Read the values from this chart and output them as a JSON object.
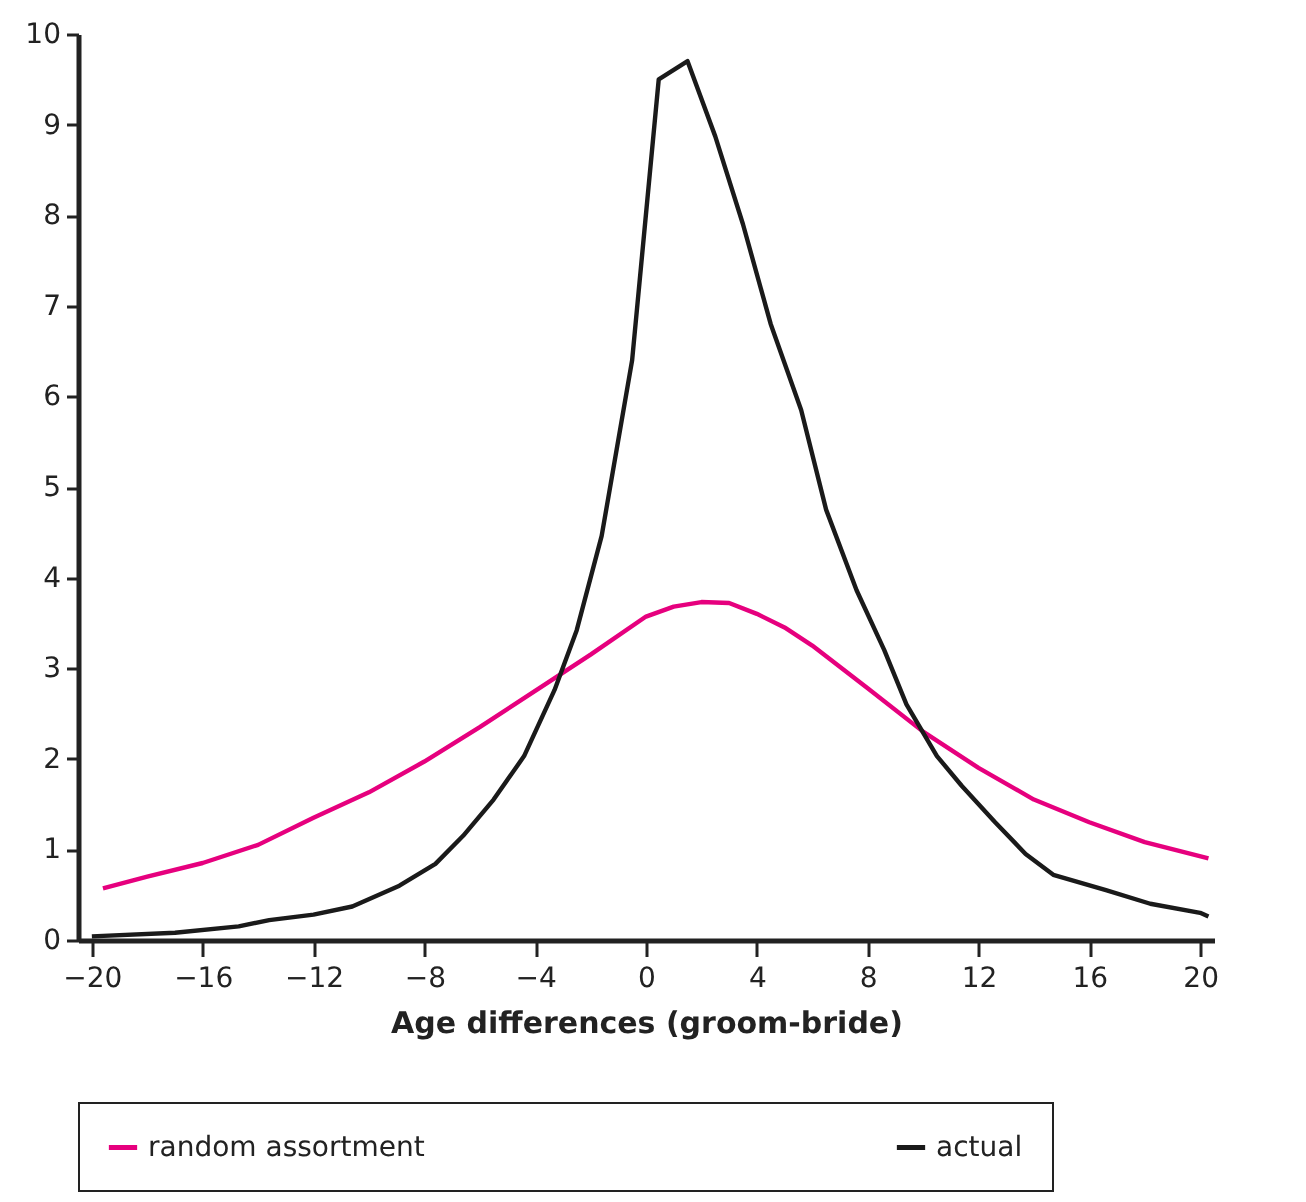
{
  "chart_data": {
    "type": "line",
    "xlabel": "Age differences (groom-bride)",
    "xlim": [
      -20.5,
      20.5
    ],
    "xticks": [
      -20,
      -16,
      -12,
      -8,
      -4,
      0,
      4,
      8,
      12,
      16,
      20
    ],
    "ylim": [
      0,
      10
    ],
    "yticks": [
      0,
      1,
      2,
      3,
      4,
      5,
      6,
      7,
      8,
      9,
      10
    ],
    "grid": false,
    "legend": "bottom",
    "series": [
      {
        "name": "random assortment",
        "color": "#e6007e",
        "x": [
          -19.6,
          -18,
          -16,
          -14,
          -12,
          -10,
          -8,
          -6,
          -4,
          -2,
          0,
          1,
          2,
          3,
          4,
          5,
          6,
          8,
          10,
          12,
          14,
          16,
          18,
          20.3
        ],
        "values": [
          0.57,
          0.7,
          0.85,
          1.05,
          1.35,
          1.63,
          1.97,
          2.35,
          2.75,
          3.15,
          3.57,
          3.68,
          3.73,
          3.72,
          3.6,
          3.45,
          3.25,
          2.78,
          2.3,
          1.9,
          1.55,
          1.3,
          1.08,
          0.9
        ]
      },
      {
        "name": "actual",
        "color": "#1a1a1a",
        "x": [
          -20,
          -17,
          -14.7,
          -13.6,
          -12,
          -10.6,
          -8.9,
          -7.6,
          -6.6,
          -5.5,
          -4.4,
          -3.3,
          -2.5,
          -1.6,
          -0.5,
          0.46,
          1.5,
          2.5,
          3.5,
          4.5,
          5.6,
          6.5,
          7.6,
          8.6,
          9.4,
          10.5,
          11.4,
          12.6,
          13.7,
          14.7,
          16.6,
          18.2,
          20,
          20.3
        ],
        "values": [
          0.04,
          0.08,
          0.15,
          0.22,
          0.28,
          0.37,
          0.6,
          0.84,
          1.15,
          1.55,
          2.03,
          2.76,
          3.42,
          4.46,
          6.4,
          9.5,
          9.7,
          8.87,
          7.9,
          6.8,
          5.85,
          4.75,
          3.86,
          3.2,
          2.6,
          2.03,
          1.7,
          1.3,
          0.95,
          0.72,
          0.55,
          0.4,
          0.3,
          0.26
        ]
      }
    ]
  }
}
